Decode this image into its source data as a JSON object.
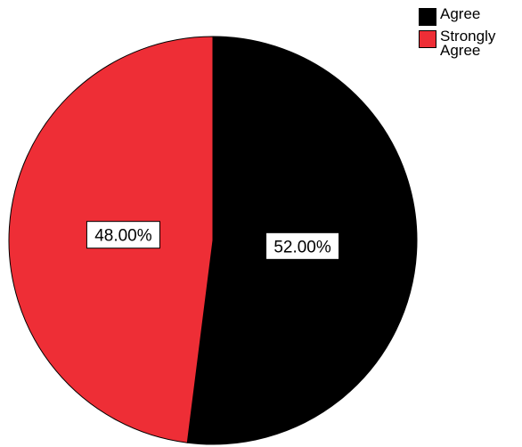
{
  "chart_data": {
    "type": "pie",
    "title": "",
    "slices": [
      {
        "label": "Agree",
        "value": 52.0,
        "display": "52.00%",
        "color": "#000000"
      },
      {
        "label": "Strongly Agree",
        "value": 48.0,
        "display": "48.00%",
        "color": "#ee2e36"
      }
    ],
    "legend_position": "top-right",
    "start_angle": "12 o'clock",
    "direction": "clockwise"
  }
}
